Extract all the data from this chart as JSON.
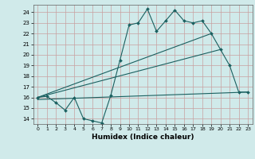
{
  "xlabel": "Humidex (Indice chaleur)",
  "xlim": [
    -0.5,
    23.5
  ],
  "ylim": [
    13.5,
    24.7
  ],
  "yticks": [
    14,
    15,
    16,
    17,
    18,
    19,
    20,
    21,
    22,
    23,
    24
  ],
  "xticks": [
    0,
    1,
    2,
    3,
    4,
    5,
    6,
    7,
    8,
    9,
    10,
    11,
    12,
    13,
    14,
    15,
    16,
    17,
    18,
    19,
    20,
    21,
    22,
    23
  ],
  "bg_color": "#d0eaea",
  "grid_color": "#c8a0a0",
  "line_color": "#1a6060",
  "line1_x": [
    0,
    1,
    2,
    3,
    4,
    5,
    6,
    7,
    8,
    9,
    10,
    11,
    12,
    13,
    14,
    15,
    16,
    17,
    18,
    19,
    20,
    21,
    22,
    23
  ],
  "line1_y": [
    16.0,
    16.1,
    15.5,
    14.8,
    16.0,
    14.0,
    13.8,
    13.6,
    16.2,
    19.5,
    22.8,
    23.0,
    24.3,
    22.2,
    23.2,
    24.2,
    23.2,
    23.0,
    23.2,
    22.0,
    20.5,
    19.0,
    16.5,
    16.5
  ],
  "line2_x": [
    0,
    20
  ],
  "line2_y": [
    16.0,
    20.5
  ],
  "line3_x": [
    0,
    23
  ],
  "line3_y": [
    15.8,
    16.5
  ],
  "line4_x": [
    0,
    19
  ],
  "line4_y": [
    16.0,
    22.0
  ]
}
